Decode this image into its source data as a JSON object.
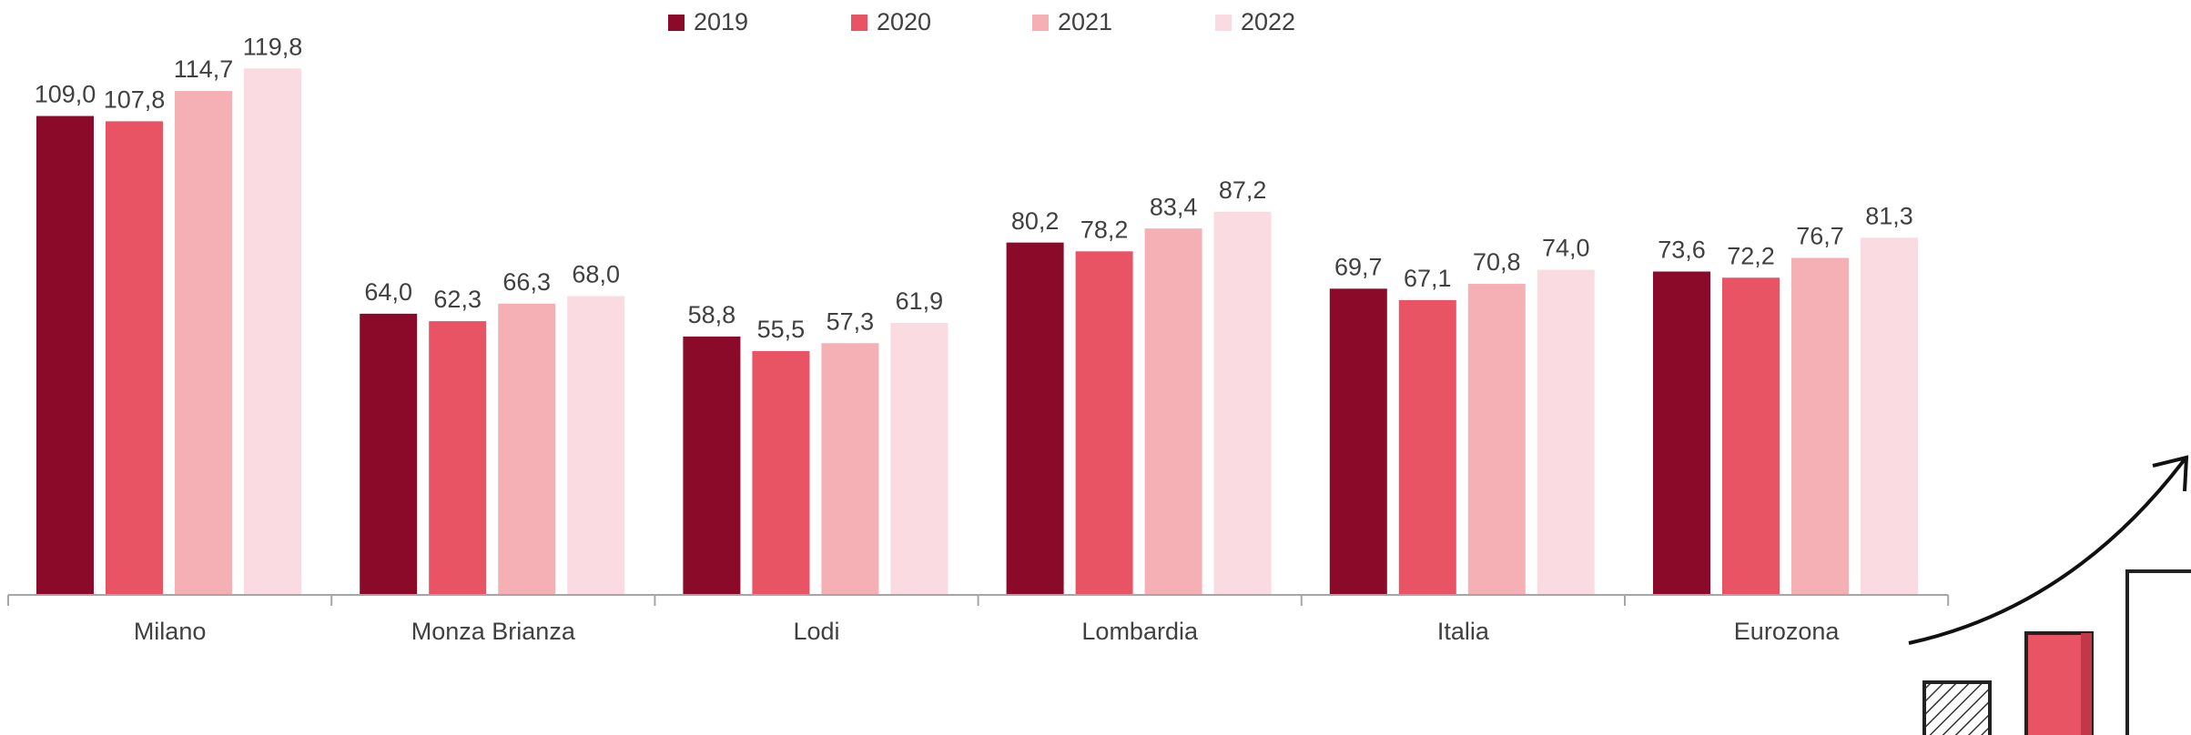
{
  "chart_data": {
    "type": "bar",
    "categories": [
      "Milano",
      "Monza Brianza",
      "Lodi",
      "Lombardia",
      "Italia",
      "Eurozona"
    ],
    "series": [
      {
        "name": "2019",
        "color": "#8b0a2a",
        "values": [
          109.0,
          64.0,
          58.8,
          80.2,
          69.7,
          73.6
        ],
        "value_labels": [
          "109,0",
          "64,0",
          "58,8",
          "80,2",
          "69,7",
          "73,6"
        ]
      },
      {
        "name": "2020",
        "color": "#e85464",
        "values": [
          107.8,
          62.3,
          55.5,
          78.2,
          67.1,
          72.2
        ],
        "value_labels": [
          "107,8",
          "62,3",
          "55,5",
          "78,2",
          "67,1",
          "72,2"
        ]
      },
      {
        "name": "2021",
        "color": "#f5b0b6",
        "values": [
          114.7,
          66.3,
          57.3,
          83.4,
          70.8,
          76.7
        ],
        "value_labels": [
          "114,7",
          "66,3",
          "57,3",
          "83,4",
          "70,8",
          "76,7"
        ]
      },
      {
        "name": "2022",
        "color": "#fadbe2",
        "values": [
          119.8,
          68.0,
          61.9,
          87.2,
          74.0,
          81.3
        ],
        "value_labels": [
          "119,8",
          "68,0",
          "61,9",
          "87,2",
          "74,0",
          "81,3"
        ]
      }
    ],
    "legend": "top"
  }
}
